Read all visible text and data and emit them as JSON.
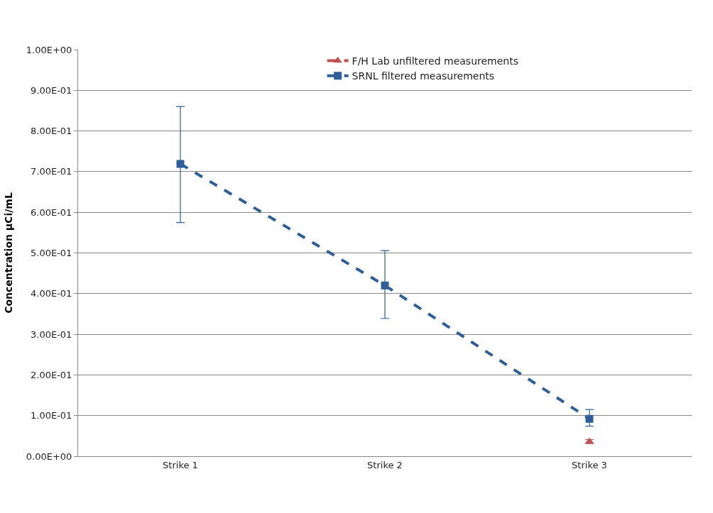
{
  "chart_data": {
    "type": "line",
    "ylabel": "Concentration µCi/mL",
    "categories": [
      "Strike 1",
      "Strike 2",
      "Strike 3"
    ],
    "series": [
      {
        "name": "F/H Lab unfiltered measurements",
        "color": "#c0504d",
        "values": [
          null,
          null,
          0.036
        ],
        "errors": [
          null,
          null,
          0.005
        ],
        "marker": "triangle",
        "line_style": "dashed"
      },
      {
        "name": "SRNL filtered measurements",
        "color": "#2e5f9b",
        "values": [
          0.719,
          0.42,
          0.092
        ],
        "errors": [
          [
            0.575,
            0.86
          ],
          [
            0.339,
            0.506
          ],
          [
            0.074,
            0.115
          ]
        ],
        "marker": "square",
        "line_style": "dashed"
      }
    ],
    "ylim": [
      0,
      1
    ],
    "yticks": [
      {
        "value": 0,
        "label": "0.00E+00"
      },
      {
        "value": 0.1,
        "label": "1.00E-01"
      },
      {
        "value": 0.2,
        "label": "2.00E-01"
      },
      {
        "value": 0.3,
        "label": "3.00E-01"
      },
      {
        "value": 0.4,
        "label": "4.00E-01"
      },
      {
        "value": 0.5,
        "label": "5.00E-01"
      },
      {
        "value": 0.6,
        "label": "6.00E-01"
      },
      {
        "value": 0.7,
        "label": "7.00E-01"
      },
      {
        "value": 0.8,
        "label": "8.00E-01"
      },
      {
        "value": 0.9,
        "label": "9.00E-01"
      },
      {
        "value": 1,
        "label": "1.00E+00"
      }
    ],
    "grid": "y",
    "legend": "top right"
  }
}
